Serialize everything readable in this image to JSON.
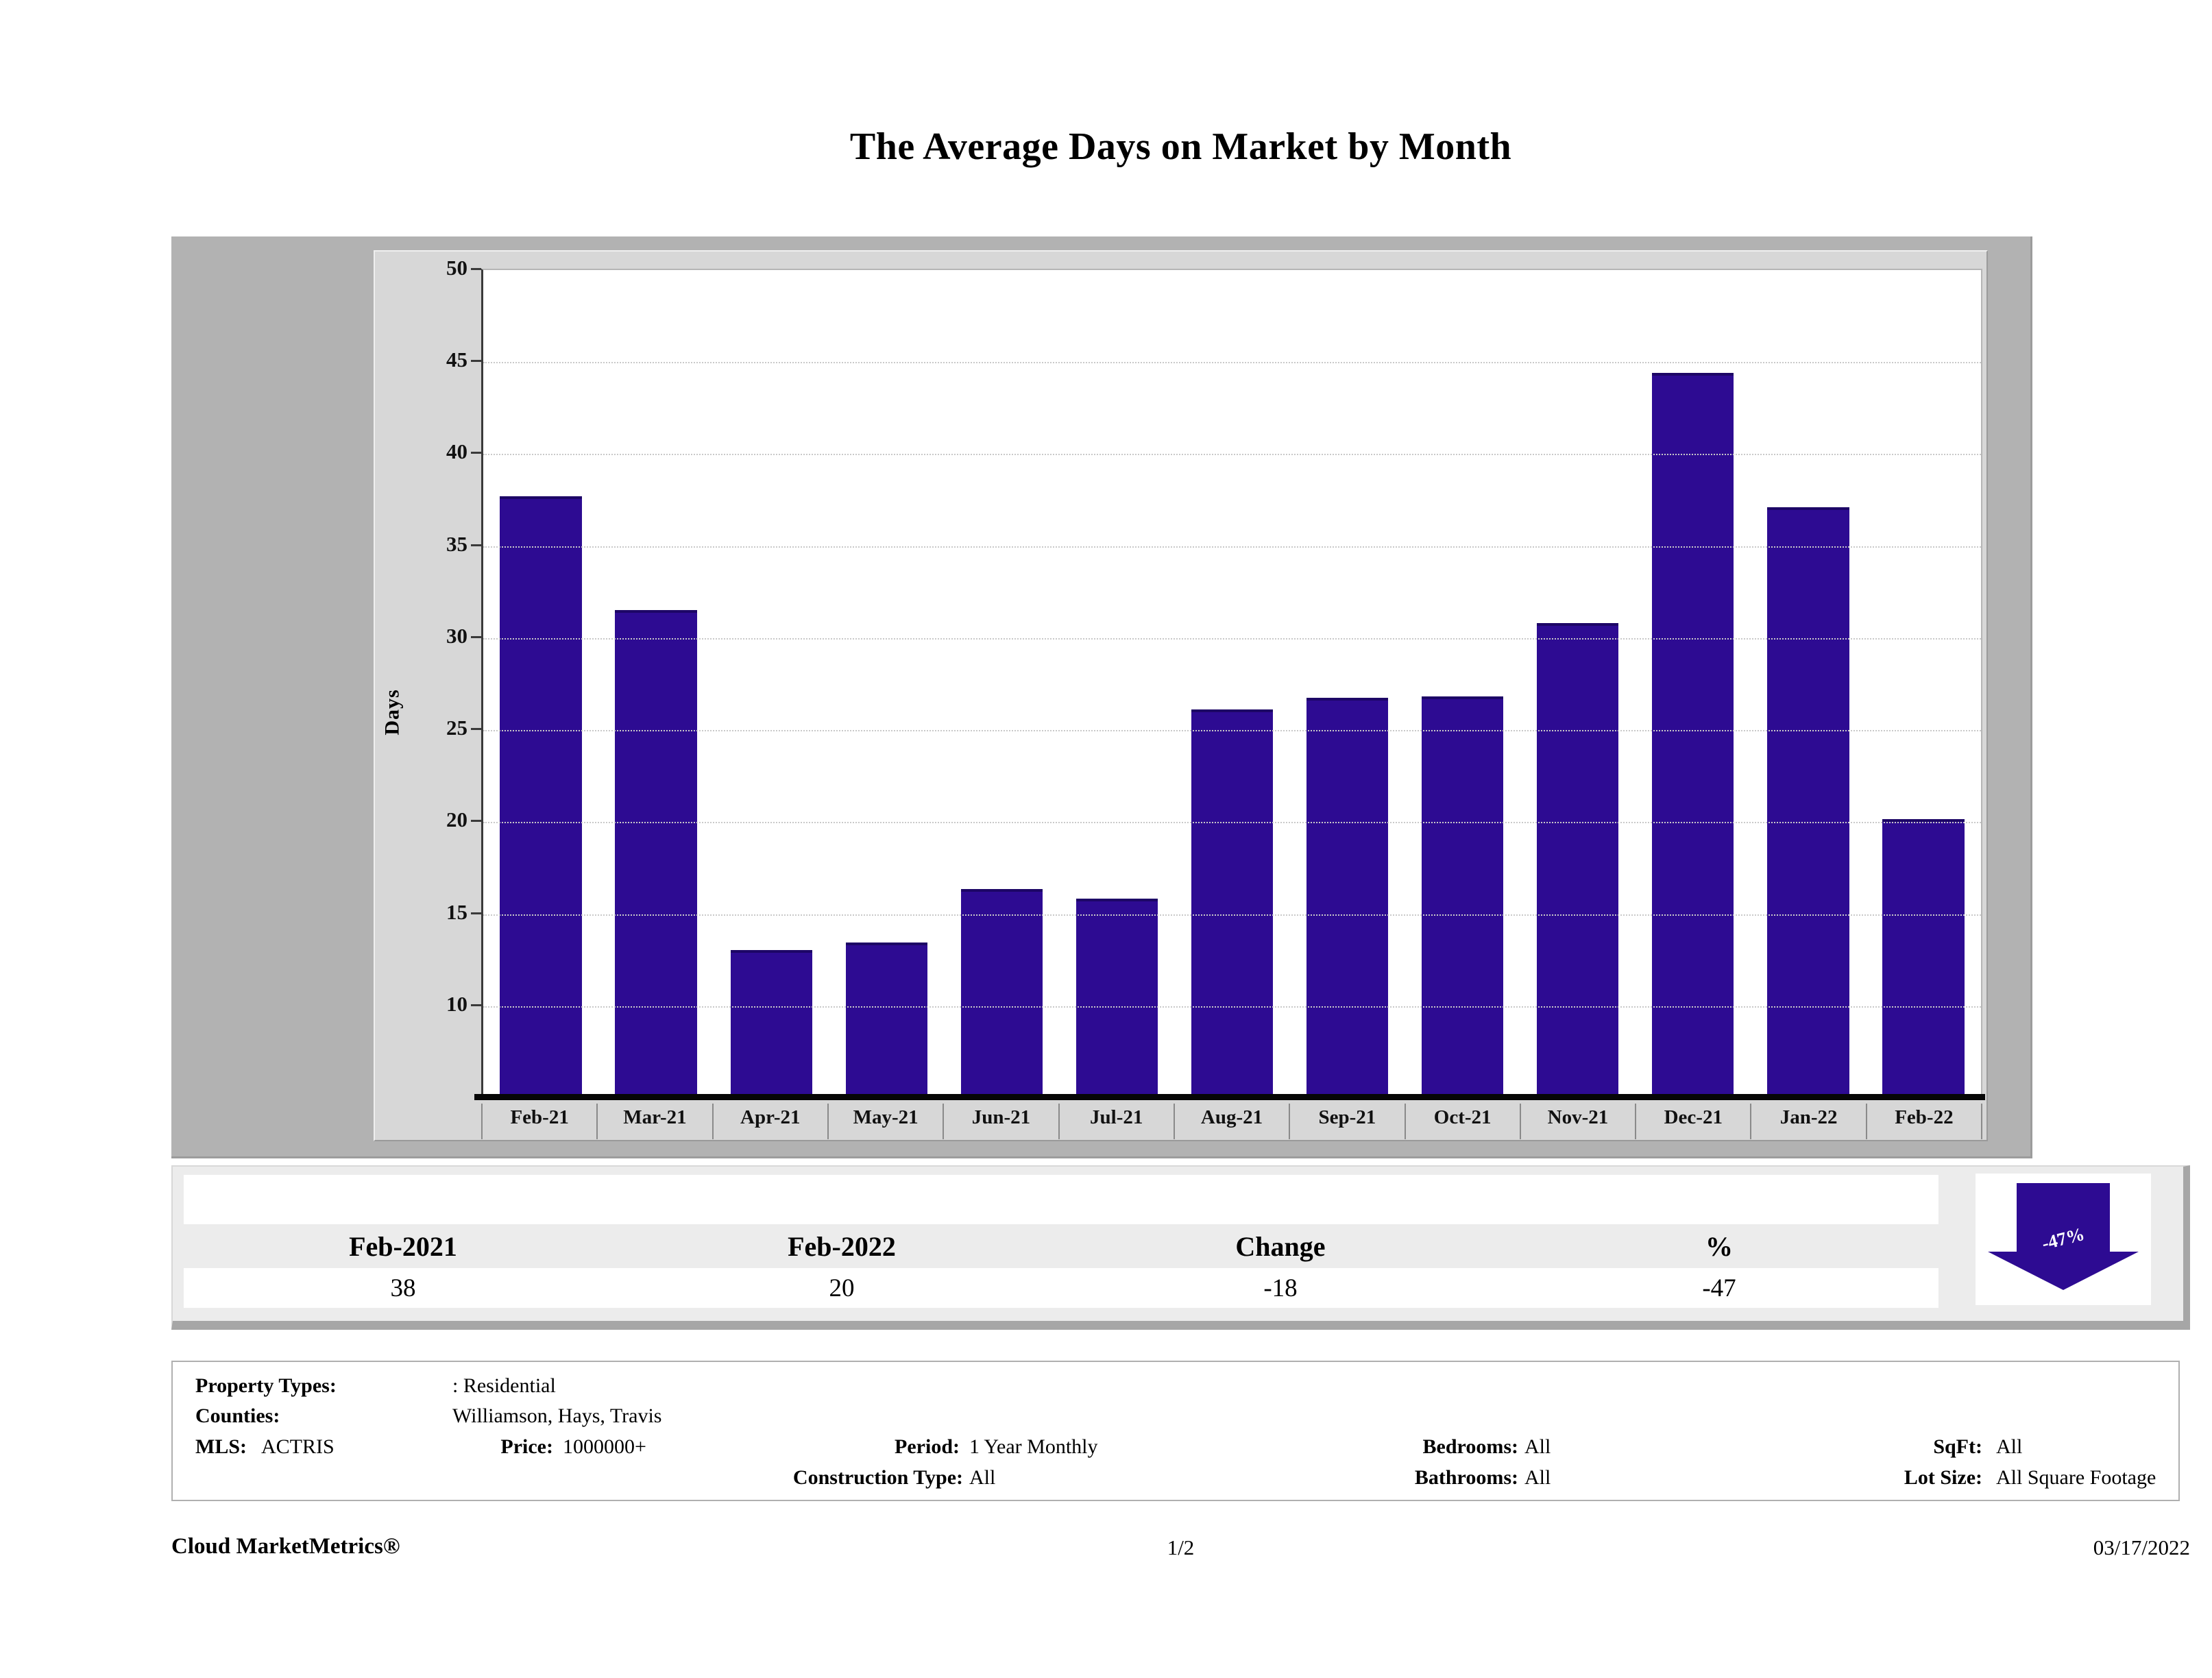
{
  "page": {
    "title": "The Average Days on Market by Month",
    "footer": {
      "brand": "Cloud MarketMetrics®",
      "page_number": "1/2",
      "date": "03/17/2022"
    }
  },
  "chart_data": {
    "type": "bar",
    "title": "The Average Days on Market by Month",
    "xlabel": "",
    "ylabel": "Days",
    "categories": [
      "Feb-21",
      "Mar-21",
      "Apr-21",
      "May-21",
      "Jun-21",
      "Jul-21",
      "Aug-21",
      "Sep-21",
      "Oct-21",
      "Nov-21",
      "Dec-21",
      "Jan-22",
      "Feb-22"
    ],
    "values": [
      37.7,
      31.5,
      13.0,
      13.4,
      16.3,
      15.8,
      26.1,
      26.7,
      26.8,
      30.8,
      44.4,
      37.1,
      20.1
    ],
    "ylim": [
      5,
      50
    ],
    "yticks": [
      50,
      45,
      40,
      35,
      30,
      25,
      20,
      15,
      10
    ],
    "grid": true,
    "legend_position": "none",
    "bar_color": "#2d0b92"
  },
  "summary_table": {
    "headers": [
      "Feb-2021",
      "Feb-2022",
      "Change",
      "%"
    ],
    "values": [
      "38",
      "20",
      "-18",
      "-47"
    ]
  },
  "trend_arrow": {
    "label": "-47%",
    "direction": "down",
    "color": "#2d0b92"
  },
  "filters": {
    "property_types_label": "Property Types:",
    "property_types": ": Residential",
    "counties_label": "Counties:",
    "counties": "Williamson, Hays, Travis",
    "mls_label": "MLS:",
    "mls": "ACTRIS",
    "price_label": "Price:",
    "price": "1000000+",
    "period_label": "Period:",
    "period": "1 Year Monthly",
    "construction_label": "Construction Type:",
    "construction": "All",
    "bedrooms_label": "Bedrooms:",
    "bedrooms": "All",
    "bathrooms_label": "Bathrooms:",
    "bathrooms": "All",
    "sqft_label": "SqFt:",
    "sqft": "All",
    "lot_label": "Lot Size:",
    "lot": "All Square Footage"
  }
}
